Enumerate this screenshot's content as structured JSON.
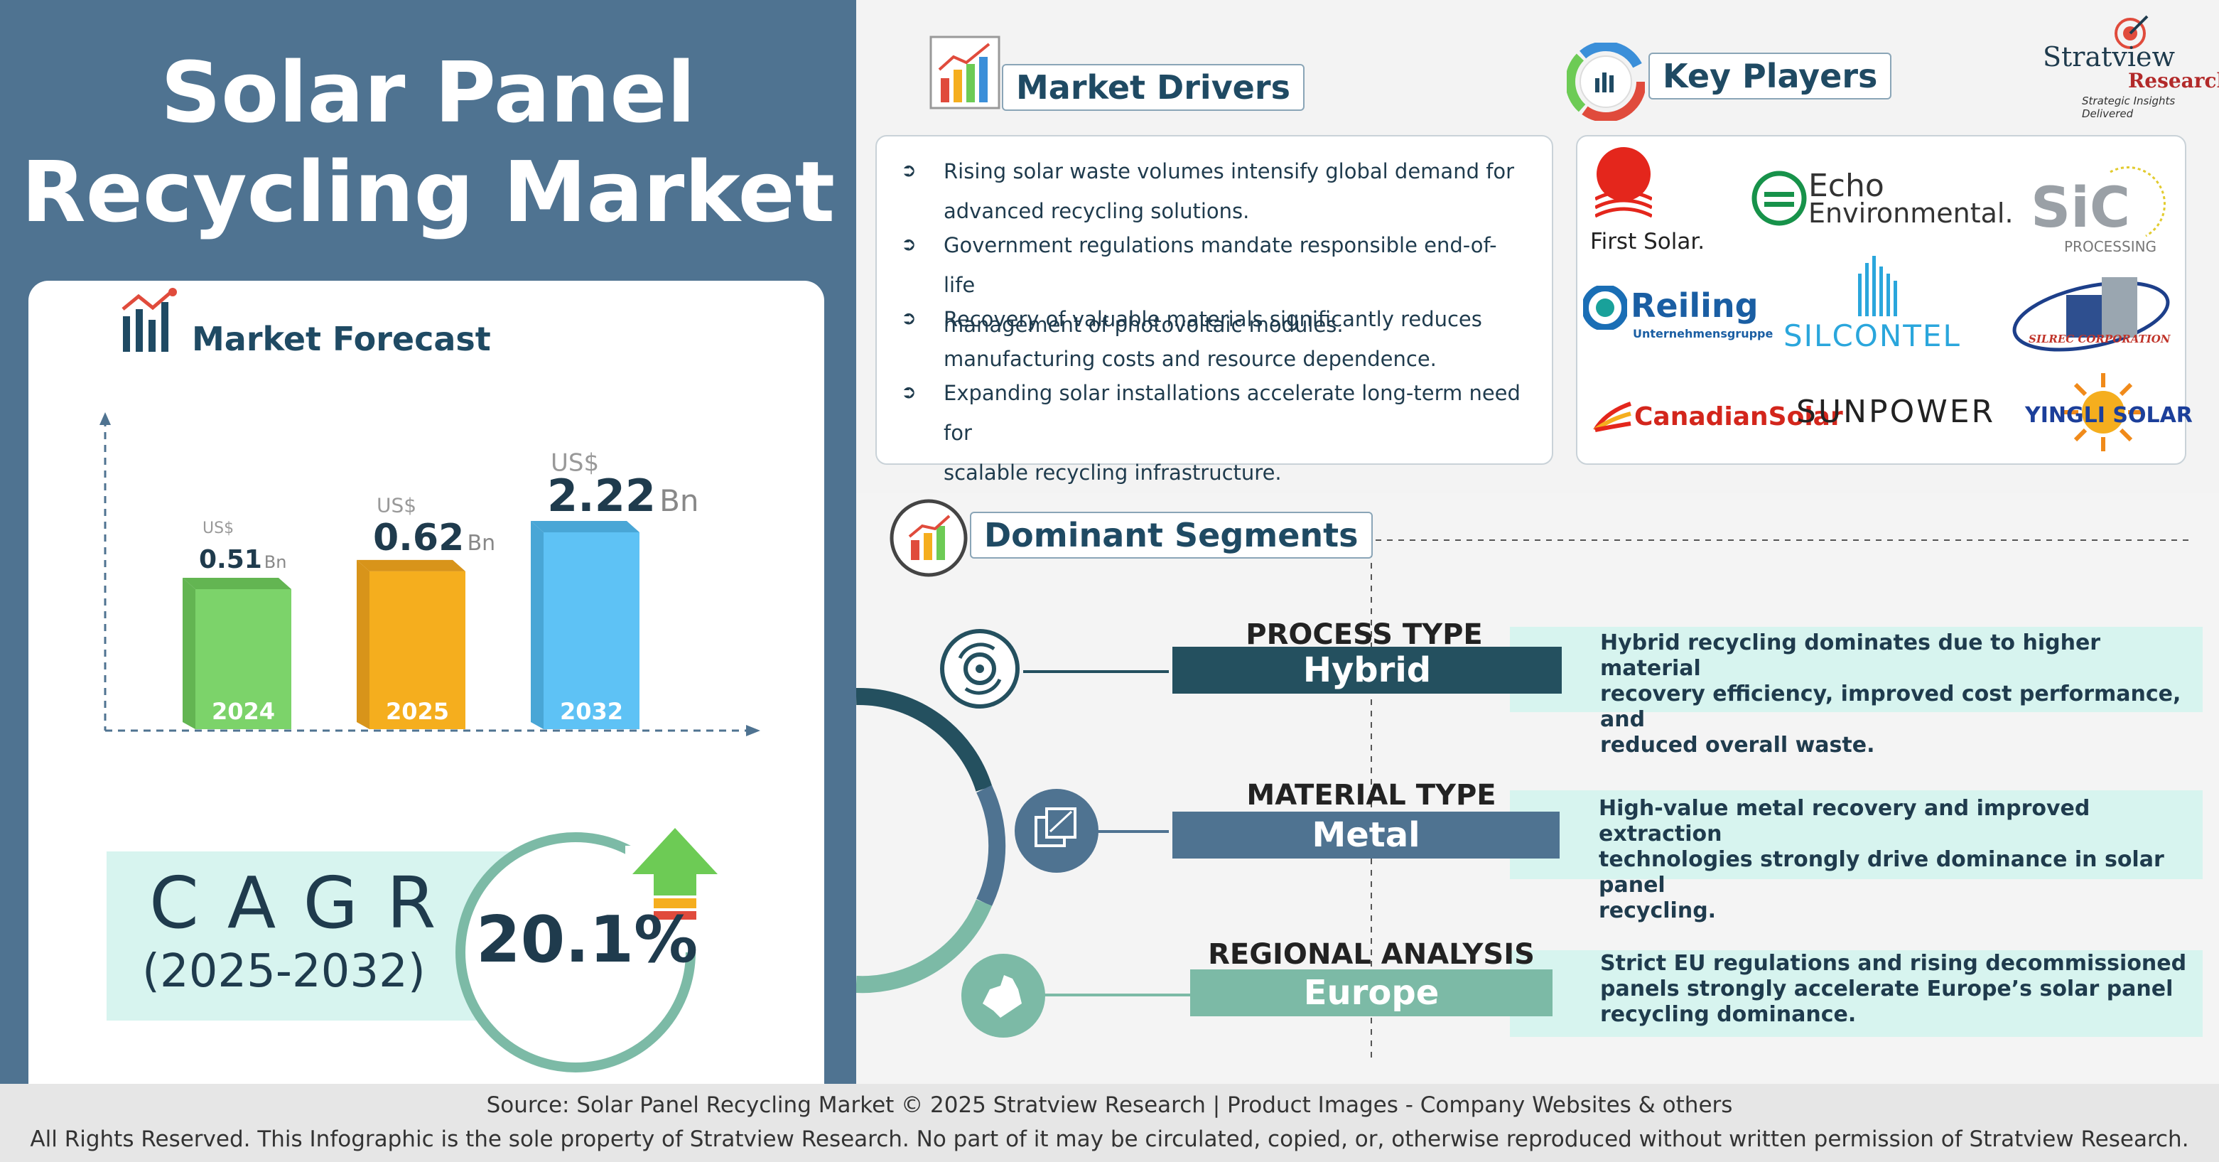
{
  "title_line1": "Solar Panel",
  "title_line2": "Recycling Market",
  "forecast": {
    "title": "Market Forecast",
    "bars": [
      {
        "year": "2024",
        "currency": "US$",
        "value": 0.51,
        "value_text": "0.51",
        "unit": "Bn",
        "color": "#7cd36a",
        "side": "#63b552"
      },
      {
        "year": "2025",
        "currency": "US$",
        "value": 0.62,
        "value_text": "0.62",
        "unit": "Bn",
        "color": "#f5ae1e",
        "side": "#d8941a"
      },
      {
        "year": "2032",
        "currency": "US$",
        "value": 2.22,
        "value_text": "2.22",
        "unit": "Bn",
        "color": "#5ec2f5",
        "side": "#49a6d6"
      }
    ]
  },
  "cagr": {
    "label": "CAGR",
    "period": "(2025-2032)",
    "value": "20.1%"
  },
  "drivers": {
    "title": "Market Drivers",
    "items": [
      [
        "Rising solar waste volumes intensify global demand for",
        "advanced recycling solutions."
      ],
      [
        "Government regulations mandate responsible end-of-life",
        "management of photovoltaic modules."
      ],
      [
        "Recovery of valuable materials significantly reduces",
        "manufacturing costs and resource dependence."
      ],
      [
        "Expanding solar installations accelerate long-term need for",
        "scalable recycling infrastructure."
      ]
    ]
  },
  "players": {
    "title": "Key Players",
    "logos": {
      "first_solar": "First Solar.",
      "echo_1": "Echo",
      "echo_2": "Environmental.",
      "sic": "SiC",
      "sic_sub": "PROCESSING",
      "reiling": "Reiling",
      "reiling_sub": "Unternehmensgruppe",
      "silcontel": "SILCONTEL",
      "silrec": "SILREC CORPORATION",
      "canadian": "CanadianSolar",
      "sunpower": "SUNPOWER",
      "yingli": "YINGLI SOLAR"
    }
  },
  "brand": {
    "name": "Stratview",
    "sub": "Research",
    "tagline": "Strategic Insights Delivered"
  },
  "segments": {
    "title": "Dominant Segments",
    "items": [
      {
        "category": "PROCESS TYPE",
        "value": "Hybrid",
        "color": "#24505f",
        "desc": [
          "Hybrid recycling dominates due to higher material",
          "recovery efficiency, improved cost performance, and",
          "reduced overall waste."
        ]
      },
      {
        "category": "MATERIAL TYPE",
        "value": "Metal",
        "color": "#4f7391",
        "desc": [
          "High-value metal recovery and improved extraction",
          "technologies strongly drive dominance in solar panel",
          "recycling."
        ]
      },
      {
        "category": "REGIONAL ANALYSIS",
        "value": "Europe",
        "color": "#7cbaa6",
        "desc": [
          "Strict EU regulations and rising decommissioned",
          "panels strongly accelerate Europe’s solar panel",
          "recycling dominance."
        ]
      }
    ]
  },
  "footer": {
    "source": "Source:  Solar Panel Recycling Market © 2025 Stratview Research | Product Images  - Company Websites & others",
    "rights": "All Rights Reserved. This Infographic is the sole property of Stratview Research. No part of it may be circulated, copied, or, otherwise reproduced without written permission of Stratview Research."
  },
  "colors": {
    "panel_blue": "#4f7391",
    "navy": "#1f3b4d",
    "mint": "#d7f4ef",
    "teal": "#7cbaa6"
  }
}
